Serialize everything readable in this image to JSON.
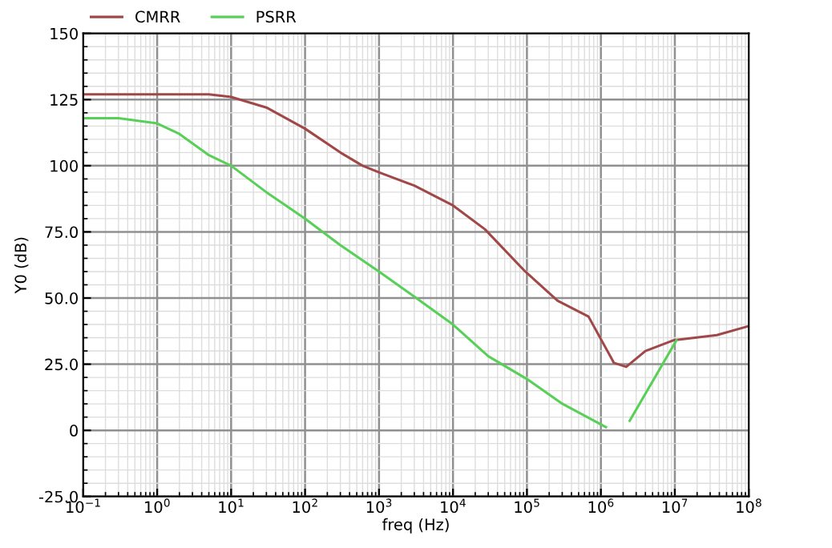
{
  "chart_data": {
    "type": "line",
    "xlabel": "freq (Hz)",
    "ylabel": "Y0 (dB)",
    "log": "x",
    "xlim": [
      0.1,
      100000000
    ],
    "ylim": [
      -25,
      150
    ],
    "xticks": [
      {
        "value": 0.1,
        "label": "10$^{−1}$"
      },
      {
        "value": 1,
        "label": "10$^{0}$"
      },
      {
        "value": 10,
        "label": "10$^{1}$"
      },
      {
        "value": 100,
        "label": "10$^{2}$"
      },
      {
        "value": 1000,
        "label": "10$^{3}$"
      },
      {
        "value": 10000,
        "label": "10$^{4}$"
      },
      {
        "value": 100000,
        "label": "10$^{5}$"
      },
      {
        "value": 1000000,
        "label": "10$^{6}$"
      },
      {
        "value": 10000000,
        "label": "10$^{7}$"
      },
      {
        "value": 100000000,
        "label": "10$^{8}$"
      }
    ],
    "yticks": [
      {
        "value": -25,
        "label": "-25.0"
      },
      0,
      {
        "value": 25,
        "label": "25.0"
      },
      {
        "value": 50,
        "label": "50.0"
      },
      {
        "value": 75,
        "label": "75.0"
      },
      100,
      125,
      150
    ],
    "grid": true,
    "legend": "top left",
    "series": [
      {
        "name": "CMRR",
        "color": "#a04848",
        "x": [
          0.1,
          1,
          5,
          10,
          30,
          100,
          300,
          600,
          1000,
          3000,
          10000,
          27000,
          95000,
          260000,
          680000,
          1500000,
          2200000,
          4000000,
          9500000,
          37000000,
          100000000
        ],
        "values": [
          127,
          127,
          127,
          126,
          122,
          114,
          105,
          100,
          97.5,
          92.5,
          85,
          76,
          60,
          49,
          43,
          25.5,
          24,
          30,
          34,
          36,
          39.4
        ]
      },
      {
        "name": "PSRR",
        "color": "#58d058",
        "x": [
          0.1,
          0.3,
          1,
          2,
          5,
          10,
          30,
          100,
          300,
          1000,
          3300,
          10000,
          30000,
          100000,
          290000,
          1170000,
          1600000,
          2450000,
          10500000
        ],
        "values": [
          118,
          118,
          116,
          112,
          104,
          100,
          90,
          80,
          70,
          60,
          49.7,
          40,
          28,
          19.4,
          10.3,
          1.2,
          null,
          3.6,
          34
        ]
      }
    ]
  }
}
